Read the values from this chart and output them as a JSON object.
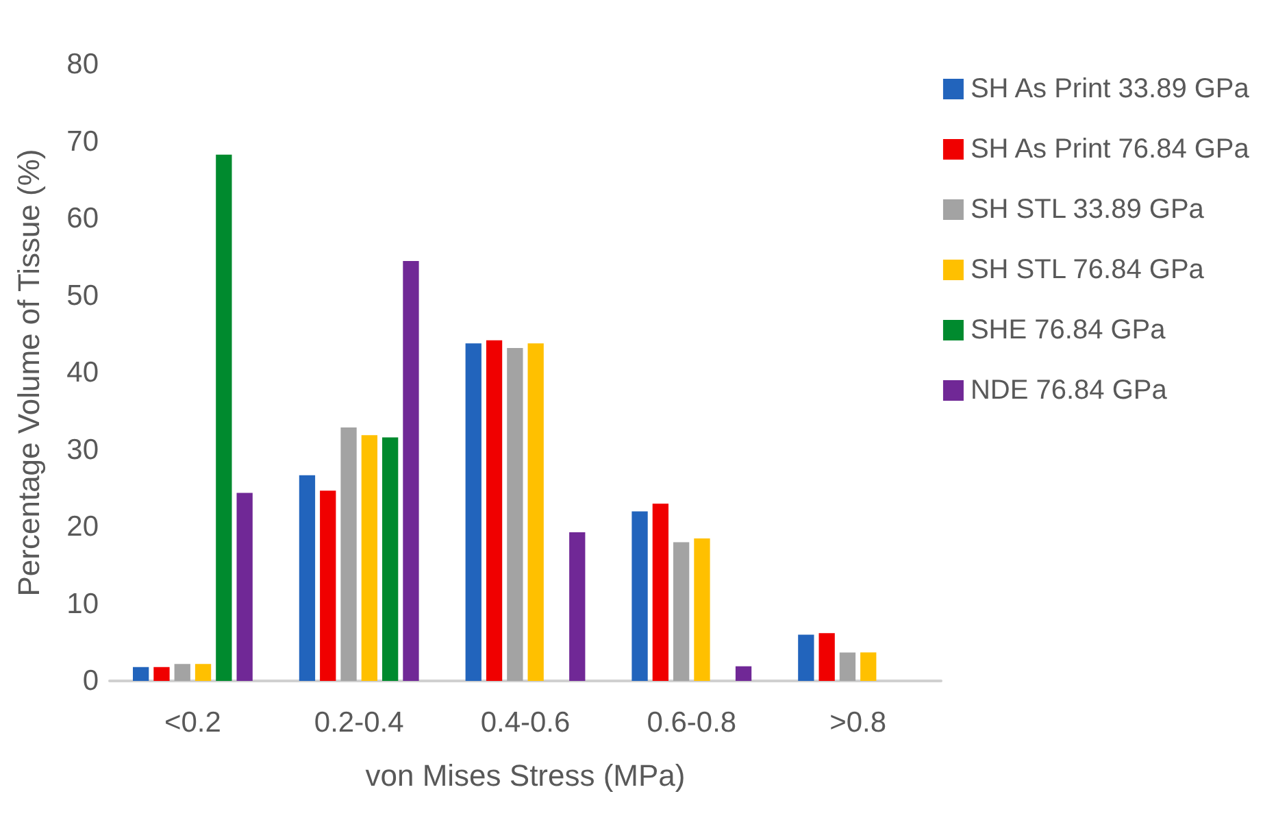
{
  "chart_data": {
    "type": "bar",
    "xlabel": "von Mises Stress (MPa)",
    "ylabel": "Percentage Volume of Tissue (%)",
    "categories": [
      "<0.2",
      "0.2-0.4",
      "0.4-0.6",
      "0.6-0.8",
      ">0.8"
    ],
    "series": [
      {
        "name": "SH As Print 33.89 GPa",
        "color": "#2264bc",
        "values": [
          1.8,
          26.7,
          43.8,
          22.0,
          6.0
        ]
      },
      {
        "name": "SH As Print 76.84 GPa",
        "color": "#f00000",
        "values": [
          1.8,
          24.7,
          44.2,
          23.0,
          6.2
        ]
      },
      {
        "name": "SH STL 33.89 GPa",
        "color": "#a3a3a3",
        "values": [
          2.2,
          32.9,
          43.2,
          18.0,
          3.7
        ]
      },
      {
        "name": "SH STL 76.84 GPa",
        "color": "#ffc000",
        "values": [
          2.2,
          31.9,
          43.8,
          18.5,
          3.7
        ]
      },
      {
        "name": "SHE 76.84 GPa",
        "color": "#008a2e",
        "values": [
          68.3,
          31.6,
          null,
          null,
          null
        ]
      },
      {
        "name": "NDE 76.84 GPa",
        "color": "#702896",
        "values": [
          24.4,
          54.5,
          19.3,
          1.9,
          null
        ]
      }
    ],
    "ylim": [
      0,
      80
    ],
    "yticks": [
      0,
      10,
      20,
      30,
      40,
      50,
      60,
      70,
      80
    ],
    "grid": false,
    "legend": "right"
  }
}
